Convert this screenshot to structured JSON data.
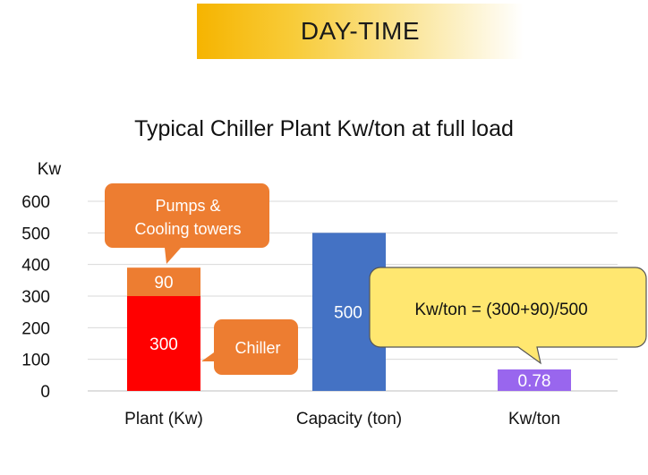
{
  "banner": {
    "text": "DAY-TIME",
    "colors": [
      "#f6b400",
      "#ffffff"
    ]
  },
  "chart_data": {
    "type": "bar",
    "title": "Typical Chiller Plant Kw/ton at full load",
    "ylabel": "Kw",
    "xlabel": "",
    "ylim": [
      0,
      600
    ],
    "yticks": [
      0,
      100,
      200,
      300,
      400,
      500,
      600
    ],
    "categories": [
      "Plant (Kw)",
      "Capacity (ton)",
      "Kw/ton"
    ],
    "bars": [
      {
        "category": "Plant (Kw)",
        "segments": [
          {
            "value": 300,
            "label": "300",
            "color": "#ff0000"
          },
          {
            "value": 90,
            "label": "90",
            "color": "#ed7d31"
          }
        ]
      },
      {
        "category": "Capacity (ton)",
        "segments": [
          {
            "value": 500,
            "label": "500",
            "color": "#4472c4"
          }
        ]
      },
      {
        "category": "Kw/ton",
        "segments": [
          {
            "value": 0.78,
            "label": "0.78",
            "color": "#9966ee"
          }
        ]
      }
    ],
    "grid": true,
    "annotations": [
      {
        "text_lines": [
          "Pumps &",
          "Cooling towers"
        ],
        "color": "#ed7d31"
      },
      {
        "text_lines": [
          "Chiller"
        ],
        "color": "#ed7d31"
      },
      {
        "text_lines": [
          "Kw/ton = (300+90)/500"
        ],
        "color": "#ffe770"
      }
    ]
  }
}
